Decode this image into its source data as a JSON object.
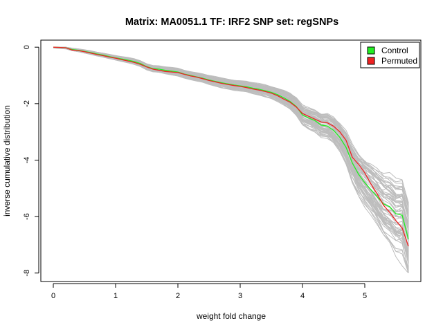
{
  "chart_data": {
    "type": "line",
    "title": "Matrix: MA0051.1 TF: IRF2 SNP set: regSNPs",
    "xlabel": "weight fold change",
    "ylabel": "inverse cumulative distribution",
    "xlim": [
      -0.2,
      5.9
    ],
    "ylim": [
      -8.3,
      0.25
    ],
    "x_ticks": [
      0,
      1,
      2,
      3,
      4,
      5
    ],
    "y_ticks": [
      0,
      -2,
      -4,
      -6,
      -8
    ],
    "x_tick_labels": [
      "0",
      "1",
      "2",
      "3",
      "4",
      "5"
    ],
    "y_tick_labels": [
      "0",
      "-2",
      "-4",
      "-6",
      "-8"
    ],
    "legend": {
      "position": "top-right",
      "entries": [
        {
          "label": "Control",
          "color": "#22ee22"
        },
        {
          "label": "Permuted",
          "color": "#ee2222"
        }
      ]
    },
    "background_color": "#bdbdbd",
    "background_series_count": 60,
    "x": [
      0,
      0.2,
      0.3,
      0.4,
      0.5,
      0.6,
      0.7,
      0.8,
      0.9,
      1.0,
      1.1,
      1.2,
      1.3,
      1.4,
      1.5,
      1.6,
      1.7,
      1.8,
      1.9,
      2.0,
      2.1,
      2.2,
      2.3,
      2.4,
      2.5,
      2.6,
      2.7,
      2.8,
      2.9,
      3.0,
      3.1,
      3.2,
      3.3,
      3.4,
      3.5,
      3.6,
      3.7,
      3.8,
      3.9,
      4.0,
      4.1,
      4.2,
      4.3,
      4.4,
      4.5,
      4.6,
      4.7,
      4.8,
      4.9,
      5.0,
      5.1,
      5.2,
      5.3,
      5.4,
      5.5,
      5.6,
      5.7
    ],
    "series": [
      {
        "name": "Control",
        "color": "#22ee22",
        "values": [
          0,
          -0.02,
          -0.08,
          -0.11,
          -0.15,
          -0.19,
          -0.24,
          -0.28,
          -0.33,
          -0.38,
          -0.42,
          -0.46,
          -0.51,
          -0.58,
          -0.69,
          -0.76,
          -0.78,
          -0.82,
          -0.85,
          -0.88,
          -0.95,
          -1.0,
          -1.05,
          -1.1,
          -1.16,
          -1.21,
          -1.26,
          -1.3,
          -1.34,
          -1.37,
          -1.4,
          -1.45,
          -1.49,
          -1.54,
          -1.6,
          -1.68,
          -1.79,
          -1.92,
          -2.1,
          -2.4,
          -2.51,
          -2.6,
          -2.76,
          -2.79,
          -2.95,
          -3.2,
          -3.55,
          -4.1,
          -4.5,
          -4.8,
          -5.05,
          -5.3,
          -5.55,
          -5.65,
          -5.9,
          -5.95,
          -6.8
        ]
      },
      {
        "name": "Permuted",
        "color": "#ee2222",
        "values": [
          0,
          -0.02,
          -0.1,
          -0.12,
          -0.16,
          -0.21,
          -0.26,
          -0.3,
          -0.35,
          -0.39,
          -0.44,
          -0.49,
          -0.54,
          -0.61,
          -0.7,
          -0.78,
          -0.82,
          -0.86,
          -0.88,
          -0.9,
          -0.96,
          -1.02,
          -1.06,
          -1.12,
          -1.18,
          -1.23,
          -1.28,
          -1.32,
          -1.36,
          -1.39,
          -1.43,
          -1.48,
          -1.52,
          -1.57,
          -1.63,
          -1.72,
          -1.84,
          -1.95,
          -2.12,
          -2.35,
          -2.45,
          -2.55,
          -2.65,
          -2.68,
          -2.8,
          -3.0,
          -3.3,
          -3.9,
          -4.15,
          -4.45,
          -4.85,
          -5.2,
          -5.6,
          -5.85,
          -6.15,
          -6.4,
          -7.05
        ]
      }
    ]
  }
}
